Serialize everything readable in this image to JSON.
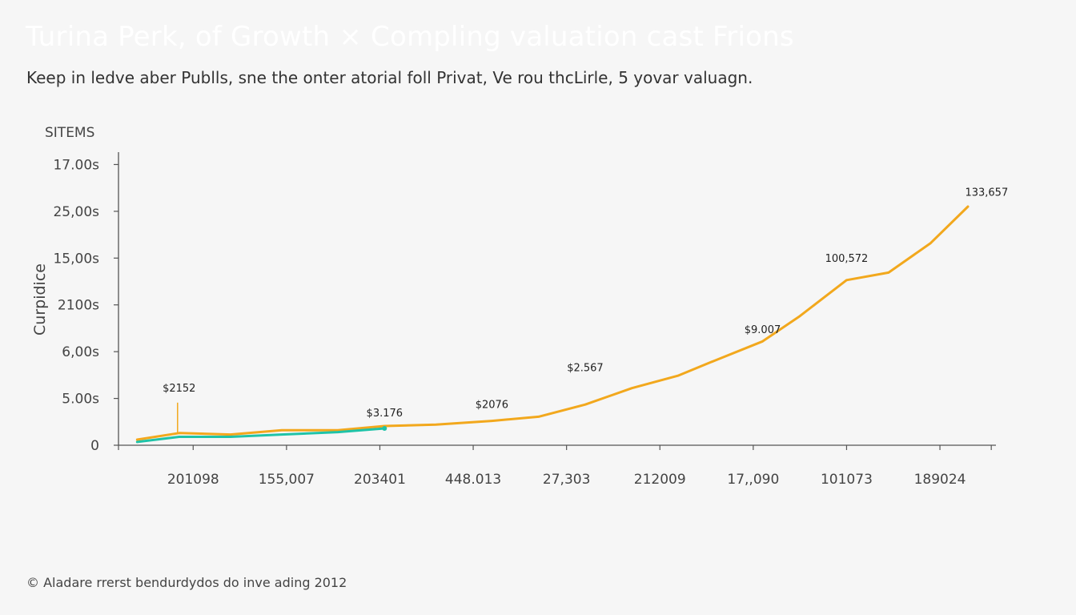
{
  "colors": {
    "background": "#f6f6f6",
    "series_orange": "#f2a81d",
    "series_teal": "#1fc3a8",
    "axis": "#555555"
  },
  "header": {
    "title": "Turina Perk, of Growth × Compling valuation cast Frions",
    "subtitle": "Keep in ledve aber Publls, sne the onter atorial foll Privat, Ve rou thcLirle, 5 yovar valuagn."
  },
  "footer": {
    "text": "© Aladare rrerst bendurdydos do inve ading 2012"
  },
  "chart_data": {
    "type": "line",
    "corner_label": "SITEMS",
    "ylabel": "Curpidice",
    "y_ticks": [
      "0",
      "5.00s",
      "6,00s",
      "2100s",
      "15,00s",
      "25,00s",
      "17.00s"
    ],
    "ylim": [
      0,
      6.35
    ],
    "x_ticks": [
      "201098",
      "155,007",
      "203401",
      "448.013",
      "27,303",
      "212009",
      "17,,090",
      "101073",
      "189024"
    ],
    "xlim": [
      0.2,
      9.6
    ],
    "grid": false,
    "series": [
      {
        "color": "#f2a81d",
        "x": [
          0.4,
          0.85,
          1.4,
          1.95,
          2.55,
          3.05,
          3.6,
          4.2,
          4.7,
          5.2,
          5.7,
          6.2,
          6.6,
          7.1,
          7.5,
          8.0,
          8.45,
          8.9,
          9.3
        ],
        "y": [
          0.12,
          0.26,
          0.23,
          0.32,
          0.32,
          0.41,
          0.44,
          0.52,
          0.61,
          0.87,
          1.22,
          1.49,
          1.82,
          2.22,
          2.76,
          3.53,
          3.69,
          4.32,
          5.1
        ]
      },
      {
        "color": "#1fc3a8",
        "x": [
          0.4,
          0.85,
          1.4,
          1.95,
          2.55,
          3.05
        ],
        "y": [
          0.07,
          0.18,
          0.18,
          0.23,
          0.28,
          0.36
        ]
      }
    ],
    "data_labels": [
      {
        "text": "$2152",
        "x": 0.85,
        "y": 1.15
      },
      {
        "text": "$3.176",
        "x": 3.05,
        "y": 0.62
      },
      {
        "text": "$2076",
        "x": 4.2,
        "y": 0.8
      },
      {
        "text": "$2.567",
        "x": 5.2,
        "y": 1.58
      },
      {
        "text": "$9.007",
        "x": 7.1,
        "y": 2.4
      },
      {
        "text": "100,572",
        "x": 8.0,
        "y": 3.92
      },
      {
        "text": "133,657",
        "x": 9.5,
        "y": 5.33
      }
    ]
  }
}
